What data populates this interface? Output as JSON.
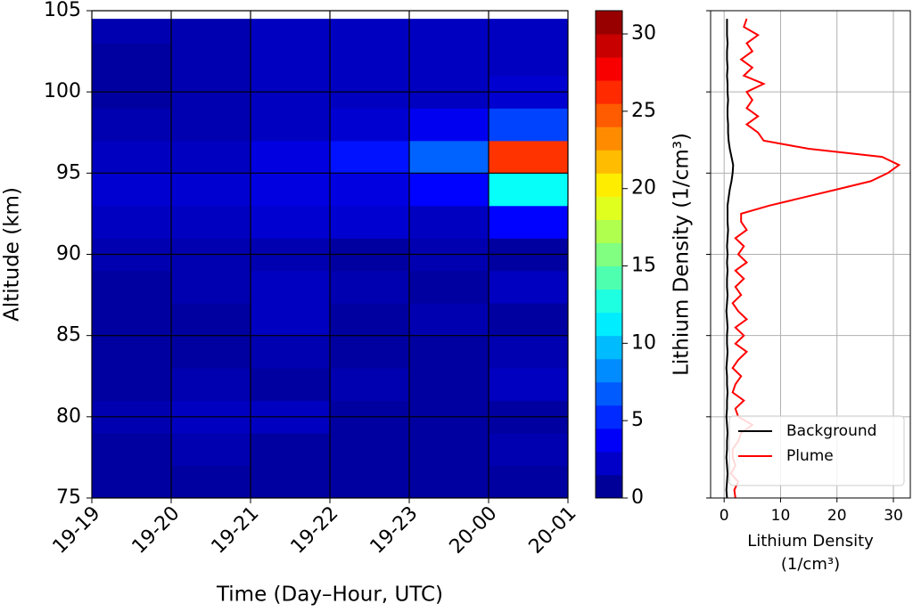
{
  "chart_data": [
    {
      "type": "contour",
      "xlabel": "Time (Day–Hour, UTC)",
      "ylabel": "Altitude (km)",
      "x": [
        "19-19",
        "19-20",
        "19-21",
        "19-22",
        "19-23",
        "20-00",
        "20-01"
      ],
      "y_edges": [
        75,
        77,
        79,
        81,
        83,
        85,
        87,
        89,
        91,
        93,
        95,
        97,
        99,
        101,
        103,
        104.5
      ],
      "z": [
        [
          1,
          1,
          1,
          1,
          1,
          1
        ],
        [
          1,
          1.5,
          1,
          1,
          1,
          1.5
        ],
        [
          1.5,
          2,
          2,
          1,
          1,
          1
        ],
        [
          1,
          1.5,
          1,
          1.5,
          1,
          2
        ],
        [
          1,
          1,
          1.5,
          1,
          1,
          1.5
        ],
        [
          1,
          1,
          2,
          1,
          1.5,
          1
        ],
        [
          1,
          1.5,
          2,
          1.5,
          1,
          2
        ],
        [
          1.5,
          1.5,
          1.5,
          1,
          1.5,
          1
        ],
        [
          2,
          2,
          2.5,
          2.5,
          2,
          4
        ],
        [
          2.5,
          2.5,
          3,
          3,
          4,
          12
        ],
        [
          2,
          2,
          3,
          4.5,
          7,
          26
        ],
        [
          1.5,
          1.5,
          2,
          2.5,
          3.5,
          6
        ],
        [
          1,
          1.5,
          2,
          2,
          2,
          2.5
        ],
        [
          1,
          1.5,
          2,
          2,
          2,
          2
        ],
        [
          1.5,
          1.5,
          2,
          2,
          2,
          2
        ]
      ],
      "ylim": [
        75,
        105
      ],
      "yticks": [
        75,
        80,
        85,
        90,
        95,
        100,
        105
      ],
      "grid": true,
      "colormap": "jet",
      "zlim": [
        0,
        31.5
      ],
      "zticks": [
        0,
        5,
        10,
        15,
        20,
        25,
        30
      ],
      "colorbar_label": "Lithium Density (1/cm³)"
    },
    {
      "type": "line",
      "xlabel": [
        "Lithium Density",
        "(1/cm³)"
      ],
      "y": [
        75,
        75.5,
        76,
        76.5,
        77,
        77.5,
        78,
        78.5,
        79,
        79.5,
        80,
        80.5,
        81,
        81.5,
        82,
        82.5,
        83,
        83.5,
        84,
        84.5,
        85,
        85.5,
        86,
        86.5,
        87,
        87.5,
        88,
        88.5,
        89,
        89.5,
        90,
        90.5,
        91,
        91.5,
        92,
        92.5,
        93,
        93.5,
        94,
        94.5,
        95,
        95.5,
        96,
        96.5,
        97,
        97.5,
        98,
        98.5,
        99,
        99.5,
        100,
        100.5,
        101,
        101.5,
        102,
        102.5,
        103,
        103.5,
        104,
        104.5
      ],
      "series": [
        {
          "name": "Background",
          "color": "#000000",
          "values": [
            0.5,
            0.4,
            0.5,
            0.6,
            0.5,
            0.4,
            0.5,
            0.5,
            0.6,
            0.5,
            0.4,
            0.5,
            0.5,
            0.6,
            0.5,
            0.5,
            0.4,
            0.5,
            0.6,
            0.5,
            0.5,
            0.6,
            0.5,
            0.4,
            0.5,
            0.6,
            0.5,
            0.5,
            0.6,
            0.5,
            0.6,
            0.5,
            0.6,
            0.7,
            0.6,
            0.6,
            0.6,
            0.8,
            1,
            1.3,
            1.5,
            1.6,
            1.3,
            1,
            0.8,
            0.7,
            0.7,
            0.6,
            0.6,
            0.7,
            0.6,
            0.6,
            0.5,
            0.6,
            0.5,
            0.5,
            0.6,
            0.5,
            0.5,
            0.5
          ]
        },
        {
          "name": "Plume",
          "color": "#ff0000",
          "values": [
            2,
            1.8,
            2.5,
            1.2,
            2,
            1.5,
            1.5,
            2.5,
            3,
            5,
            2.5,
            2,
            3.5,
            1.5,
            2,
            3,
            1.5,
            2.5,
            4,
            2,
            3.5,
            2,
            4,
            2.5,
            1.5,
            3,
            2,
            3.5,
            2,
            4,
            2.5,
            3.5,
            2,
            4,
            3,
            3,
            8,
            14,
            20,
            26,
            29,
            31,
            28,
            15,
            7,
            6,
            4,
            6,
            4,
            5,
            4,
            7,
            3.5,
            5,
            3,
            5,
            4,
            6,
            3.5,
            4
          ]
        }
      ],
      "xlim": [
        -2.4,
        33
      ],
      "xticks": [
        0,
        10,
        20,
        30
      ],
      "ylim": [
        75,
        105
      ],
      "yticks": [
        75,
        80,
        85,
        90,
        95,
        100,
        105
      ],
      "ytick_labels": false,
      "grid": true,
      "legend": "lower right"
    }
  ]
}
